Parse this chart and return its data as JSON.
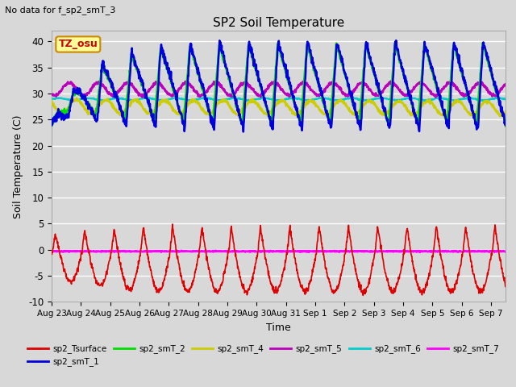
{
  "title": "SP2 Soil Temperature",
  "subtitle": "No data for f_sp2_smT_3",
  "ylabel": "Soil Temperature (C)",
  "xlabel": "Time",
  "tz_label": "TZ_osu",
  "ylim": [
    -10,
    42
  ],
  "yticks": [
    -10,
    -5,
    0,
    5,
    10,
    15,
    20,
    25,
    30,
    35,
    40
  ],
  "x_tick_labels": [
    "Aug 23",
    "Aug 24",
    "Aug 25",
    "Aug 26",
    "Aug 27",
    "Aug 28",
    "Aug 29",
    "Aug 30",
    "Aug 31",
    "Sep 1",
    "Sep 2",
    "Sep 3",
    "Sep 4",
    "Sep 5",
    "Sep 6",
    "Sep 7"
  ],
  "colors": {
    "sp2_Tsurface": "#dd0000",
    "sp2_smT_1": "#0000dd",
    "sp2_smT_2": "#00dd00",
    "sp2_smT_4": "#cccc00",
    "sp2_smT_5": "#bb00bb",
    "sp2_smT_6": "#00cccc",
    "sp2_smT_7": "#ff00ff"
  },
  "fig_bg": "#d8d8d8",
  "plot_bg": "#d8d8d8",
  "grid_color": "#ffffff",
  "tz_box_bg": "#ffff99",
  "tz_box_border": "#cc8800",
  "n_days": 15.5
}
